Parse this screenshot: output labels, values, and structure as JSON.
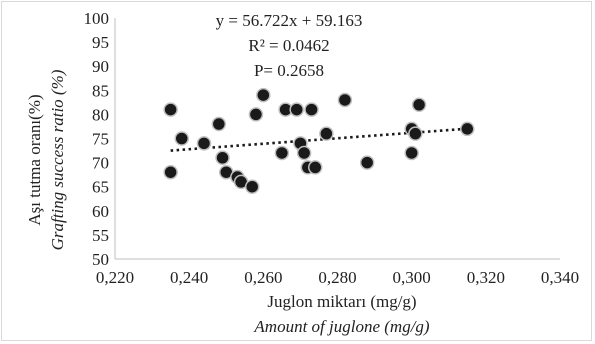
{
  "chart_data": {
    "type": "scatter",
    "xlabel": "Juglon miktarı (mg/g)",
    "xlabel_sub": "Amount of juglone (mg/g)",
    "ylabel": "Aşı tutma oranı(%)",
    "ylabel_sub": "Grafting success ratio (%)",
    "xlim": [
      0.22,
      0.34
    ],
    "ylim": [
      50,
      100
    ],
    "x_ticks": [
      "0,220",
      "0,240",
      "0,260",
      "0,280",
      "0,300",
      "0,320",
      "0,340"
    ],
    "y_ticks": [
      "50",
      "55",
      "60",
      "65",
      "70",
      "75",
      "80",
      "85",
      "90",
      "95",
      "100"
    ],
    "annotations": [
      "y = 56.722x + 59.163",
      "R² = 0.0462",
      "P= 0.2658"
    ],
    "trendline": {
      "slope": 56.722,
      "intercept": 59.163,
      "x_range": [
        0.235,
        0.315
      ],
      "style": "dotted"
    },
    "points": [
      {
        "x": 0.235,
        "y": 81
      },
      {
        "x": 0.235,
        "y": 68
      },
      {
        "x": 0.238,
        "y": 75
      },
      {
        "x": 0.244,
        "y": 74
      },
      {
        "x": 0.248,
        "y": 78
      },
      {
        "x": 0.249,
        "y": 71
      },
      {
        "x": 0.25,
        "y": 68
      },
      {
        "x": 0.253,
        "y": 67
      },
      {
        "x": 0.254,
        "y": 66
      },
      {
        "x": 0.257,
        "y": 65
      },
      {
        "x": 0.258,
        "y": 80
      },
      {
        "x": 0.26,
        "y": 84
      },
      {
        "x": 0.265,
        "y": 72
      },
      {
        "x": 0.266,
        "y": 81
      },
      {
        "x": 0.269,
        "y": 81
      },
      {
        "x": 0.27,
        "y": 74
      },
      {
        "x": 0.271,
        "y": 72
      },
      {
        "x": 0.272,
        "y": 69
      },
      {
        "x": 0.273,
        "y": 81
      },
      {
        "x": 0.274,
        "y": 69
      },
      {
        "x": 0.277,
        "y": 76
      },
      {
        "x": 0.282,
        "y": 83
      },
      {
        "x": 0.288,
        "y": 70
      },
      {
        "x": 0.3,
        "y": 77
      },
      {
        "x": 0.3,
        "y": 72
      },
      {
        "x": 0.301,
        "y": 76
      },
      {
        "x": 0.302,
        "y": 82
      },
      {
        "x": 0.315,
        "y": 77
      }
    ],
    "grid": false,
    "legend": "none",
    "colors": {
      "marker_fill": "#1a1a1a",
      "marker_edge": "#bfbfbf",
      "trendline": "#1a1a1a",
      "axis": "#bfbfbf"
    }
  }
}
